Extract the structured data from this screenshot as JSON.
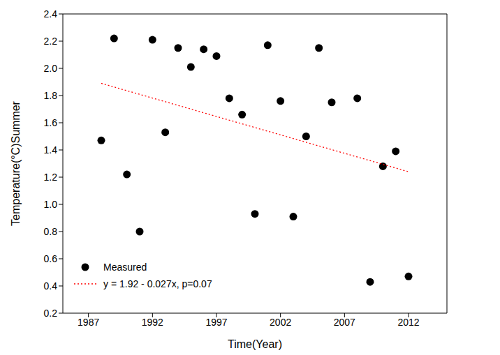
{
  "chart_data": {
    "type": "scatter",
    "x_label": "Time(Year)",
    "y_label": "Temperature(°C)Summer",
    "xlim": [
      1985,
      2015
    ],
    "xticks": [
      1987,
      1992,
      1997,
      2002,
      2007,
      2012
    ],
    "ylim": [
      0.2,
      2.4
    ],
    "yticks": [
      0.2,
      0.4,
      0.6,
      0.8,
      {
        "value": 1,
        "label": "1.0"
      },
      1.2,
      1.4,
      1.6,
      1.8,
      {
        "value": 2,
        "label": "2.0"
      },
      2.2,
      2.4
    ],
    "grid": false,
    "legend": "lower left",
    "series": [
      {
        "name": "Measured",
        "type": "scatter",
        "color": "#000000",
        "marker": "circle",
        "x": [
          1988,
          1989,
          1990,
          1991,
          1992,
          1993,
          1994,
          1995,
          1996,
          1997,
          1998,
          1999,
          2000,
          2001,
          2002,
          2003,
          2004,
          2005,
          2006,
          2008,
          2009,
          2010,
          2011,
          2012
        ],
        "values": [
          1.47,
          2.22,
          1.22,
          0.8,
          2.21,
          1.53,
          2.15,
          2.01,
          2.14,
          2.09,
          1.78,
          1.66,
          0.93,
          2.17,
          1.76,
          0.91,
          1.5,
          2.15,
          1.75,
          1.78,
          0.43,
          1.28,
          1.39,
          0.47
        ]
      },
      {
        "name": "y = 1.92 - 0.027x, p=0.07",
        "type": "line",
        "color": "#ff0000",
        "line_style": "dotted",
        "x": [
          1988,
          2012
        ],
        "values": [
          1.89,
          1.24
        ]
      }
    ]
  }
}
